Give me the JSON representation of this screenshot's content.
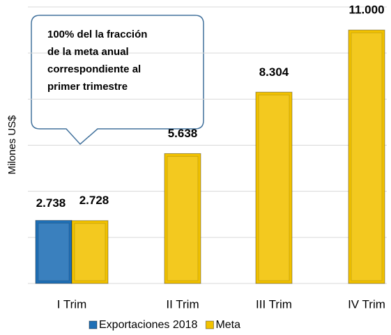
{
  "chart_data": {
    "type": "bar",
    "y_label": "Milones US$",
    "annotation": [
      "100% del la fracción",
      "de la meta anual",
      "correspondiente al",
      "primer trimestre"
    ],
    "categories": [
      "I Trim",
      "II Trim",
      "III Trim",
      "IV Trim"
    ],
    "series": [
      {
        "name": "Exportaciones 2018",
        "color": "#1f6fb5",
        "values": [
          2738,
          null,
          null,
          null
        ],
        "value_labels": [
          "2.738",
          null,
          null,
          null
        ]
      },
      {
        "name": "Meta",
        "color": "#f2c200",
        "values": [
          2728,
          5638,
          8304,
          11000
        ],
        "value_labels": [
          "2.728",
          "5.638",
          "8.304",
          "11.000"
        ]
      }
    ],
    "ylim": [
      0,
      12000
    ],
    "yticks": [
      0,
      2000,
      4000,
      6000,
      8000,
      10000,
      12000
    ],
    "grid": true,
    "legend": "bottom"
  }
}
